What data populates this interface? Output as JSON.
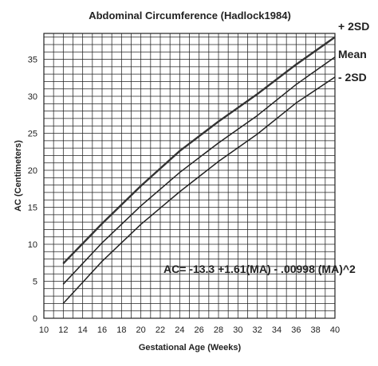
{
  "chart_data": {
    "type": "line",
    "title": "Abdominal Circumference (Hadlock1984)",
    "xlabel": "Gestational Age (Weeks)",
    "ylabel": "AC (Centimeters)",
    "xlim": [
      10,
      40
    ],
    "ylim": [
      0,
      38.5
    ],
    "xticks": [
      "10",
      "12",
      "14",
      "16",
      "18",
      "20",
      "22",
      "24",
      "26",
      "28",
      "30",
      "32",
      "34",
      "36",
      "38",
      "40"
    ],
    "yticks": [
      "0",
      "5",
      "10",
      "15",
      "20",
      "25",
      "30",
      "35"
    ],
    "x_minor_step": 1,
    "y_minor_step": 1,
    "grid": true,
    "legend": "labels at right end of lines",
    "formula": "AC= -13.3 +1.61(MA) - .00998 (MA)^2",
    "series": [
      {
        "name": "+ 2SD",
        "color": "#333333",
        "x": [
          12,
          16,
          20,
          24,
          28,
          32,
          36,
          40
        ],
        "y": [
          7.4,
          12.8,
          17.9,
          22.6,
          26.6,
          30.3,
          34.3,
          38.0
        ]
      },
      {
        "name": "Mean",
        "color": "#222222",
        "x": [
          12,
          16,
          20,
          24,
          28,
          32,
          36,
          40
        ],
        "y": [
          4.6,
          10.2,
          15.2,
          19.7,
          23.7,
          27.4,
          31.6,
          35.3
        ]
      },
      {
        "name": "- 2SD",
        "color": "#222222",
        "x": [
          12,
          16,
          20,
          24,
          28,
          32,
          36,
          40
        ],
        "y": [
          2.0,
          7.7,
          12.7,
          17.1,
          21.2,
          24.9,
          29.1,
          32.6
        ]
      }
    ]
  }
}
